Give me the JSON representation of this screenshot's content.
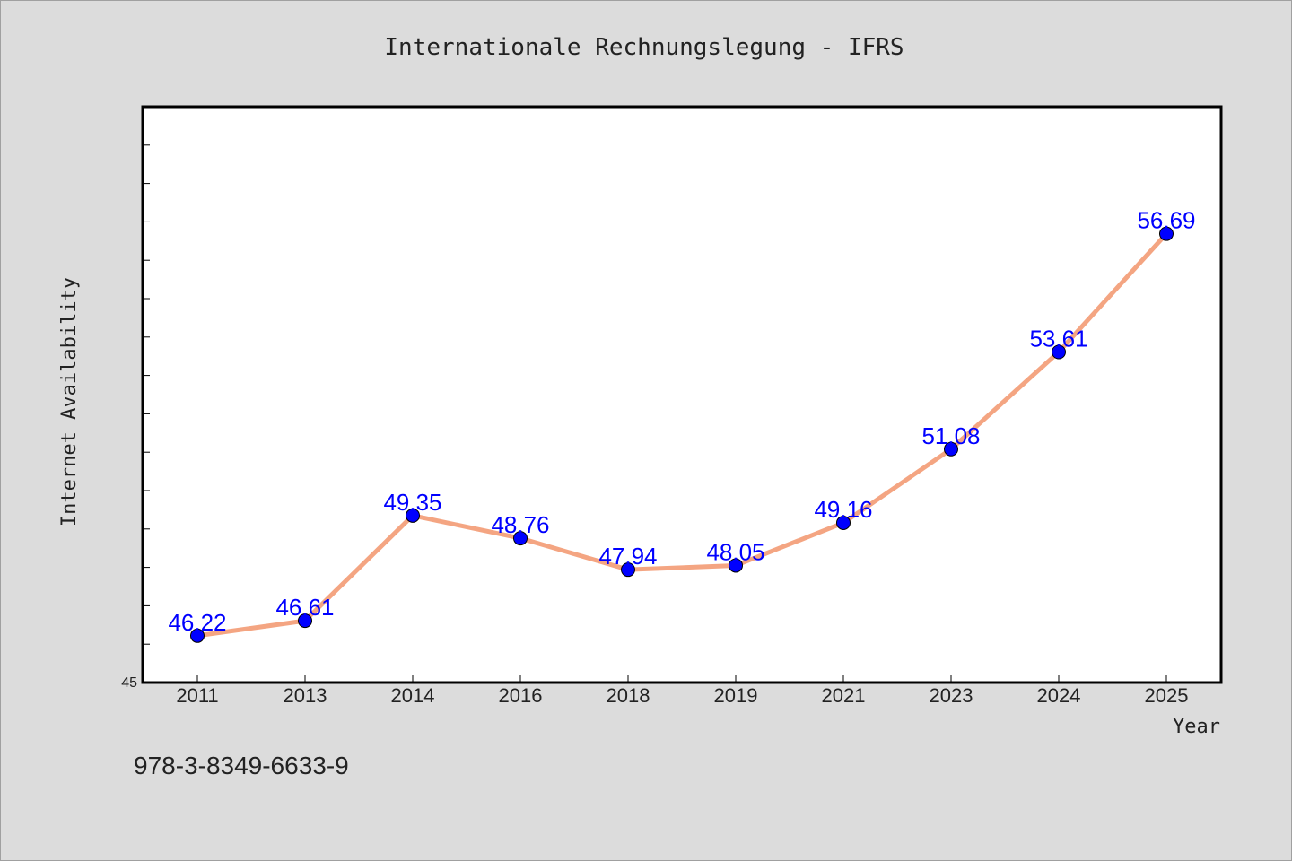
{
  "chart_data": {
    "type": "line",
    "title": "Internationale Rechnungslegung - IFRS",
    "xlabel": "Year",
    "ylabel": "Internet Availability",
    "categories": [
      "2011",
      "2013",
      "2014",
      "2016",
      "2018",
      "2019",
      "2021",
      "2023",
      "2024",
      "2025"
    ],
    "series": [
      {
        "values": [
          46.22,
          46.61,
          49.35,
          48.76,
          47.94,
          48.05,
          49.16,
          51.08,
          53.61,
          56.69
        ],
        "labels": [
          "46.22",
          "46.61",
          "49.35",
          "48.76",
          "47.94",
          "48.05",
          "49.16",
          "51.08",
          "53.61",
          "56.69"
        ]
      }
    ],
    "ylim": [
      45,
      60
    ],
    "y_tick_labels": [
      "45"
    ],
    "grid": false,
    "line_color": "#f4a582",
    "marker_color": "#0000ff",
    "label_color": "#0000ff"
  },
  "footer": {
    "isbn": "978-3-8349-6633-9"
  },
  "colors": {
    "background": "#dcdcdc",
    "plot_background": "#ffffff"
  }
}
